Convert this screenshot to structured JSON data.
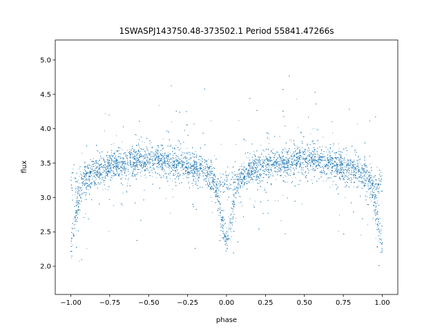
{
  "chart_data": {
    "type": "scatter",
    "title": "1SWASPJ143750.48-373502.1 Period 55841.47266s",
    "xlabel": "phase",
    "ylabel": "flux",
    "xlim": [
      -1.1,
      1.1
    ],
    "ylim": [
      1.59,
      5.29
    ],
    "xticks": [
      -1.0,
      -0.75,
      -0.5,
      -0.25,
      0.0,
      0.25,
      0.5,
      0.75,
      1.0
    ],
    "xtick_labels": [
      "−1.00",
      "−0.75",
      "−0.50",
      "−0.25",
      "0.00",
      "0.25",
      "0.50",
      "0.75",
      "1.00"
    ],
    "yticks": [
      2.0,
      2.5,
      3.0,
      3.5,
      4.0,
      4.5,
      5.0
    ],
    "ytick_labels": [
      "2.0",
      "2.5",
      "3.0",
      "3.5",
      "4.0",
      "4.5",
      "5.0"
    ],
    "grid": false,
    "marker_color": "#1f77b4",
    "series": [
      {
        "phase": [
          -1.0,
          -0.98,
          -0.96,
          -0.94,
          -0.92,
          -0.9,
          -0.85,
          -0.8,
          -0.7,
          -0.6,
          -0.5,
          -0.4,
          -0.3,
          -0.2,
          -0.15,
          -0.1,
          -0.08,
          -0.06,
          -0.04,
          -0.02,
          0.0,
          0.02,
          0.04,
          0.06,
          0.08,
          0.1,
          0.15,
          0.2,
          0.3,
          0.4,
          0.5,
          0.6,
          0.7,
          0.8,
          0.85,
          0.9,
          0.92,
          0.94,
          0.96,
          0.98,
          1.0
        ],
        "flux": [
          2.32,
          2.55,
          2.8,
          3.05,
          3.25,
          3.32,
          3.38,
          3.42,
          3.48,
          3.52,
          3.55,
          3.52,
          3.48,
          3.42,
          3.38,
          3.32,
          3.25,
          3.05,
          2.8,
          2.55,
          2.32,
          2.55,
          2.8,
          3.05,
          3.25,
          3.32,
          3.38,
          3.42,
          3.48,
          3.52,
          3.55,
          3.52,
          3.48,
          3.42,
          3.38,
          3.32,
          3.25,
          3.05,
          2.8,
          2.55,
          2.32
        ]
      }
    ]
  }
}
